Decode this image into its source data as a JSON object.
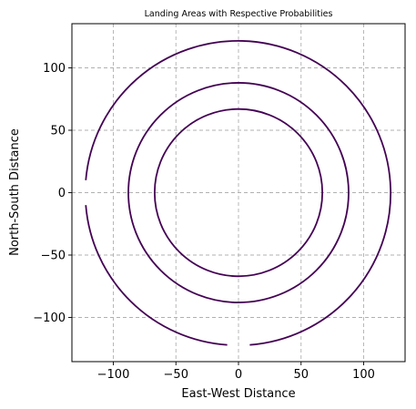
{
  "chart_data": {
    "type": "line",
    "title": "Landing Areas with Respective Probabilities",
    "xlabel": "East-West Distance",
    "ylabel": "North-South Distance",
    "xlim": [
      -135,
      135
    ],
    "ylim": [
      -135,
      135
    ],
    "xticks": [
      -100,
      -50,
      0,
      50,
      100
    ],
    "yticks": [
      -100,
      -50,
      0,
      50,
      100
    ],
    "xtick_labels": [
      "−100",
      "−50",
      "0",
      "50",
      "100"
    ],
    "ytick_labels": [
      "−100",
      "−50",
      "0",
      "50",
      "100"
    ],
    "grid": true,
    "aspect": "equal",
    "line_color": "#440154",
    "series": [
      {
        "center": [
          0,
          0
        ],
        "radius": 67,
        "gaps": []
      },
      {
        "center": [
          0,
          0
        ],
        "radius": 88,
        "gaps": []
      },
      {
        "center": [
          0,
          0
        ],
        "radius": 122,
        "gaps": [
          {
            "from": [
              -122,
              10
            ],
            "to": [
              -122,
              -10
            ]
          },
          {
            "from": [
              -9,
              -122
            ],
            "to": [
              9,
              -122
            ]
          }
        ]
      }
    ]
  }
}
